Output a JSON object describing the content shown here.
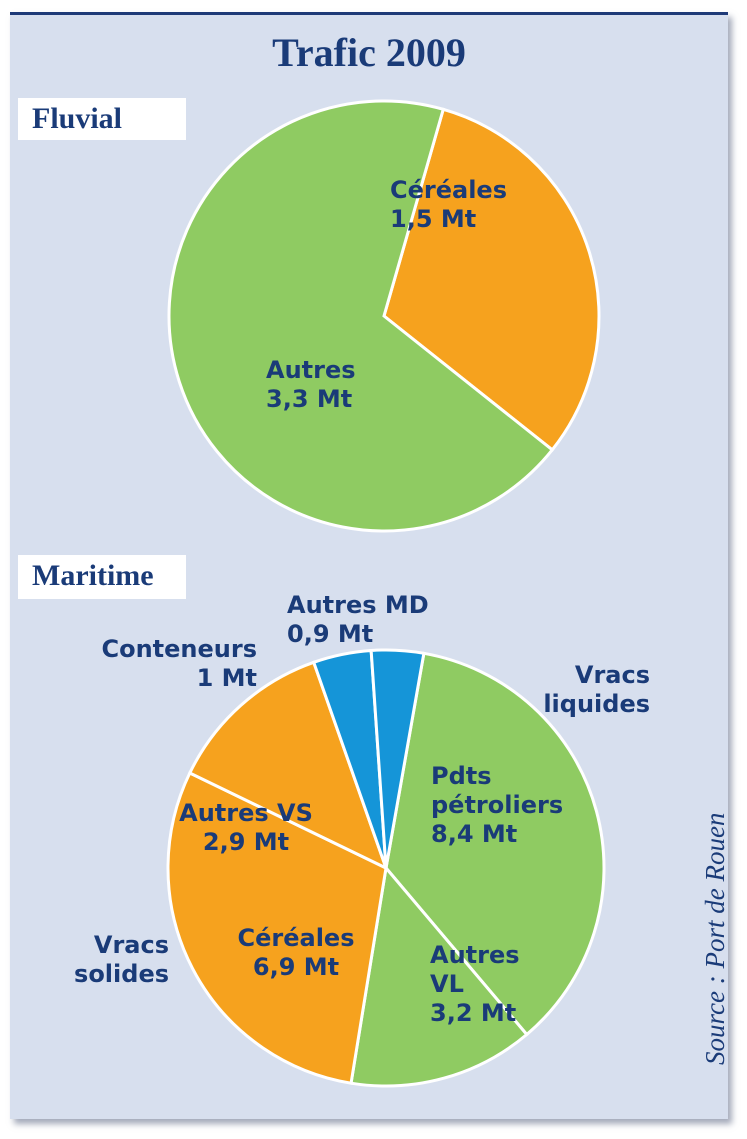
{
  "title": "Trafic 2009",
  "source": "Source : Port de Rouen",
  "colors": {
    "orange": "#f6a21e",
    "green": "#8fcb62",
    "blue": "#1595d8",
    "background": "#d7dfee",
    "text": "#1a3b78"
  },
  "chart_data": [
    {
      "type": "pie",
      "title": "Fluvial",
      "unit": "Mt",
      "slices": [
        {
          "label": "Céréales",
          "value": 1.5,
          "value_label": "1,5 Mt",
          "color": "#f6a21e"
        },
        {
          "label": "Autres",
          "value": 3.3,
          "value_label": "3,3 Mt",
          "color": "#8fcb62"
        }
      ]
    },
    {
      "type": "pie",
      "title": "Maritime",
      "unit": "Mt",
      "groups": [
        {
          "label": "Vracs liquides"
        },
        {
          "label": "Vracs solides"
        }
      ],
      "slices": [
        {
          "label": "Pdts pétroliers",
          "value": 8.4,
          "value_label": "8,4 Mt",
          "group": "Vracs liquides",
          "color": "#8fcb62"
        },
        {
          "label": "Autres VL",
          "value": 3.2,
          "value_label": "3,2 Mt",
          "group": "Vracs liquides",
          "color": "#8fcb62"
        },
        {
          "label": "Céréales",
          "value": 6.9,
          "value_label": "6,9 Mt",
          "group": "Vracs solides",
          "color": "#f6a21e"
        },
        {
          "label": "Autres VS",
          "value": 2.9,
          "value_label": "2,9 Mt",
          "group": "Vracs solides",
          "color": "#f6a21e"
        },
        {
          "label": "Conteneurs",
          "value": 1.0,
          "value_label": "1 Mt",
          "color": "#1595d8"
        },
        {
          "label": "Autres MD",
          "value": 0.9,
          "value_label": "0,9 Mt",
          "color": "#1595d8"
        }
      ]
    }
  ]
}
